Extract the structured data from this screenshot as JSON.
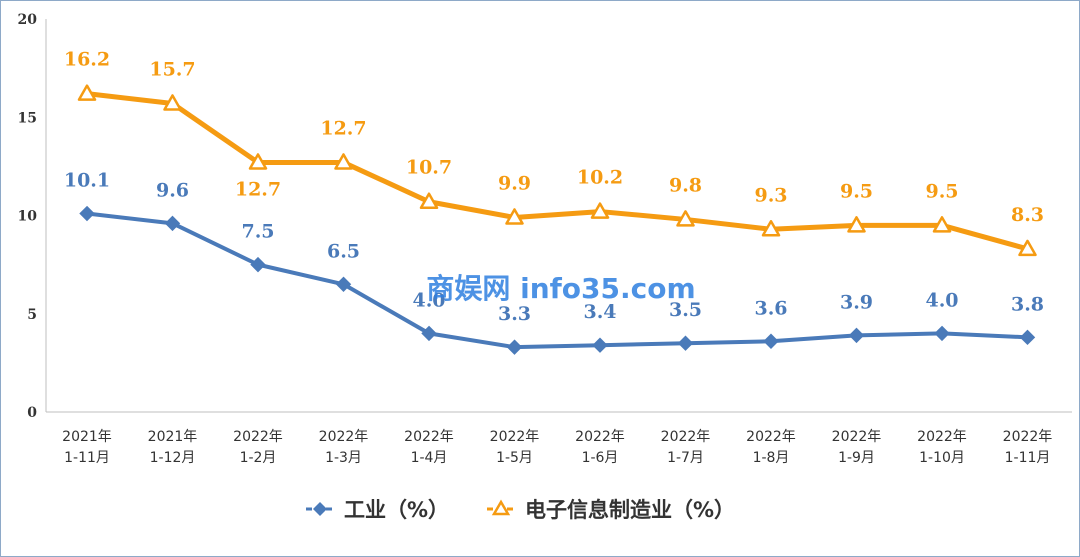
{
  "chart_data": {
    "type": "line",
    "categories": [
      [
        "2021年",
        "1-11月"
      ],
      [
        "2021年",
        "1-12月"
      ],
      [
        "2022年",
        "1-2月"
      ],
      [
        "2022年",
        "1-3月"
      ],
      [
        "2022年",
        "1-4月"
      ],
      [
        "2022年",
        "1-5月"
      ],
      [
        "2022年",
        "1-6月"
      ],
      [
        "2022年",
        "1-7月"
      ],
      [
        "2022年",
        "1-8月"
      ],
      [
        "2022年",
        "1-9月"
      ],
      [
        "2022年",
        "1-10月"
      ],
      [
        "2022年",
        "1-11月"
      ]
    ],
    "series": [
      {
        "name": "工业（%）",
        "color": "#4a7ab9",
        "marker": "diamond",
        "values": [
          10.1,
          9.6,
          7.5,
          6.5,
          4.0,
          3.3,
          3.4,
          3.5,
          3.6,
          3.9,
          4.0,
          3.8
        ],
        "labels": [
          "10.1",
          "9.6",
          "7.5",
          "6.5",
          "4.0",
          "3.3",
          "3.4",
          "3.5",
          "3.6",
          "3.9",
          "4.0",
          "3.8"
        ]
      },
      {
        "name": "电子信息制造业（%）",
        "color": "#f59b12",
        "marker": "triangle",
        "values": [
          16.2,
          15.7,
          12.7,
          12.7,
          10.7,
          9.9,
          10.2,
          9.8,
          9.3,
          9.5,
          9.5,
          8.3
        ],
        "labels": [
          "16.2",
          "15.7",
          "12.7",
          "12.7",
          "10.7",
          "9.9",
          "10.2",
          "9.8",
          "9.3",
          "9.5",
          "9.5",
          "8.3"
        ]
      }
    ],
    "yticks": [
      "0",
      "5",
      "10",
      "15",
      "20"
    ],
    "ylim": [
      0,
      20
    ],
    "grid": false,
    "legend": "bottom-center"
  },
  "watermark": "商娱网 info35.com"
}
